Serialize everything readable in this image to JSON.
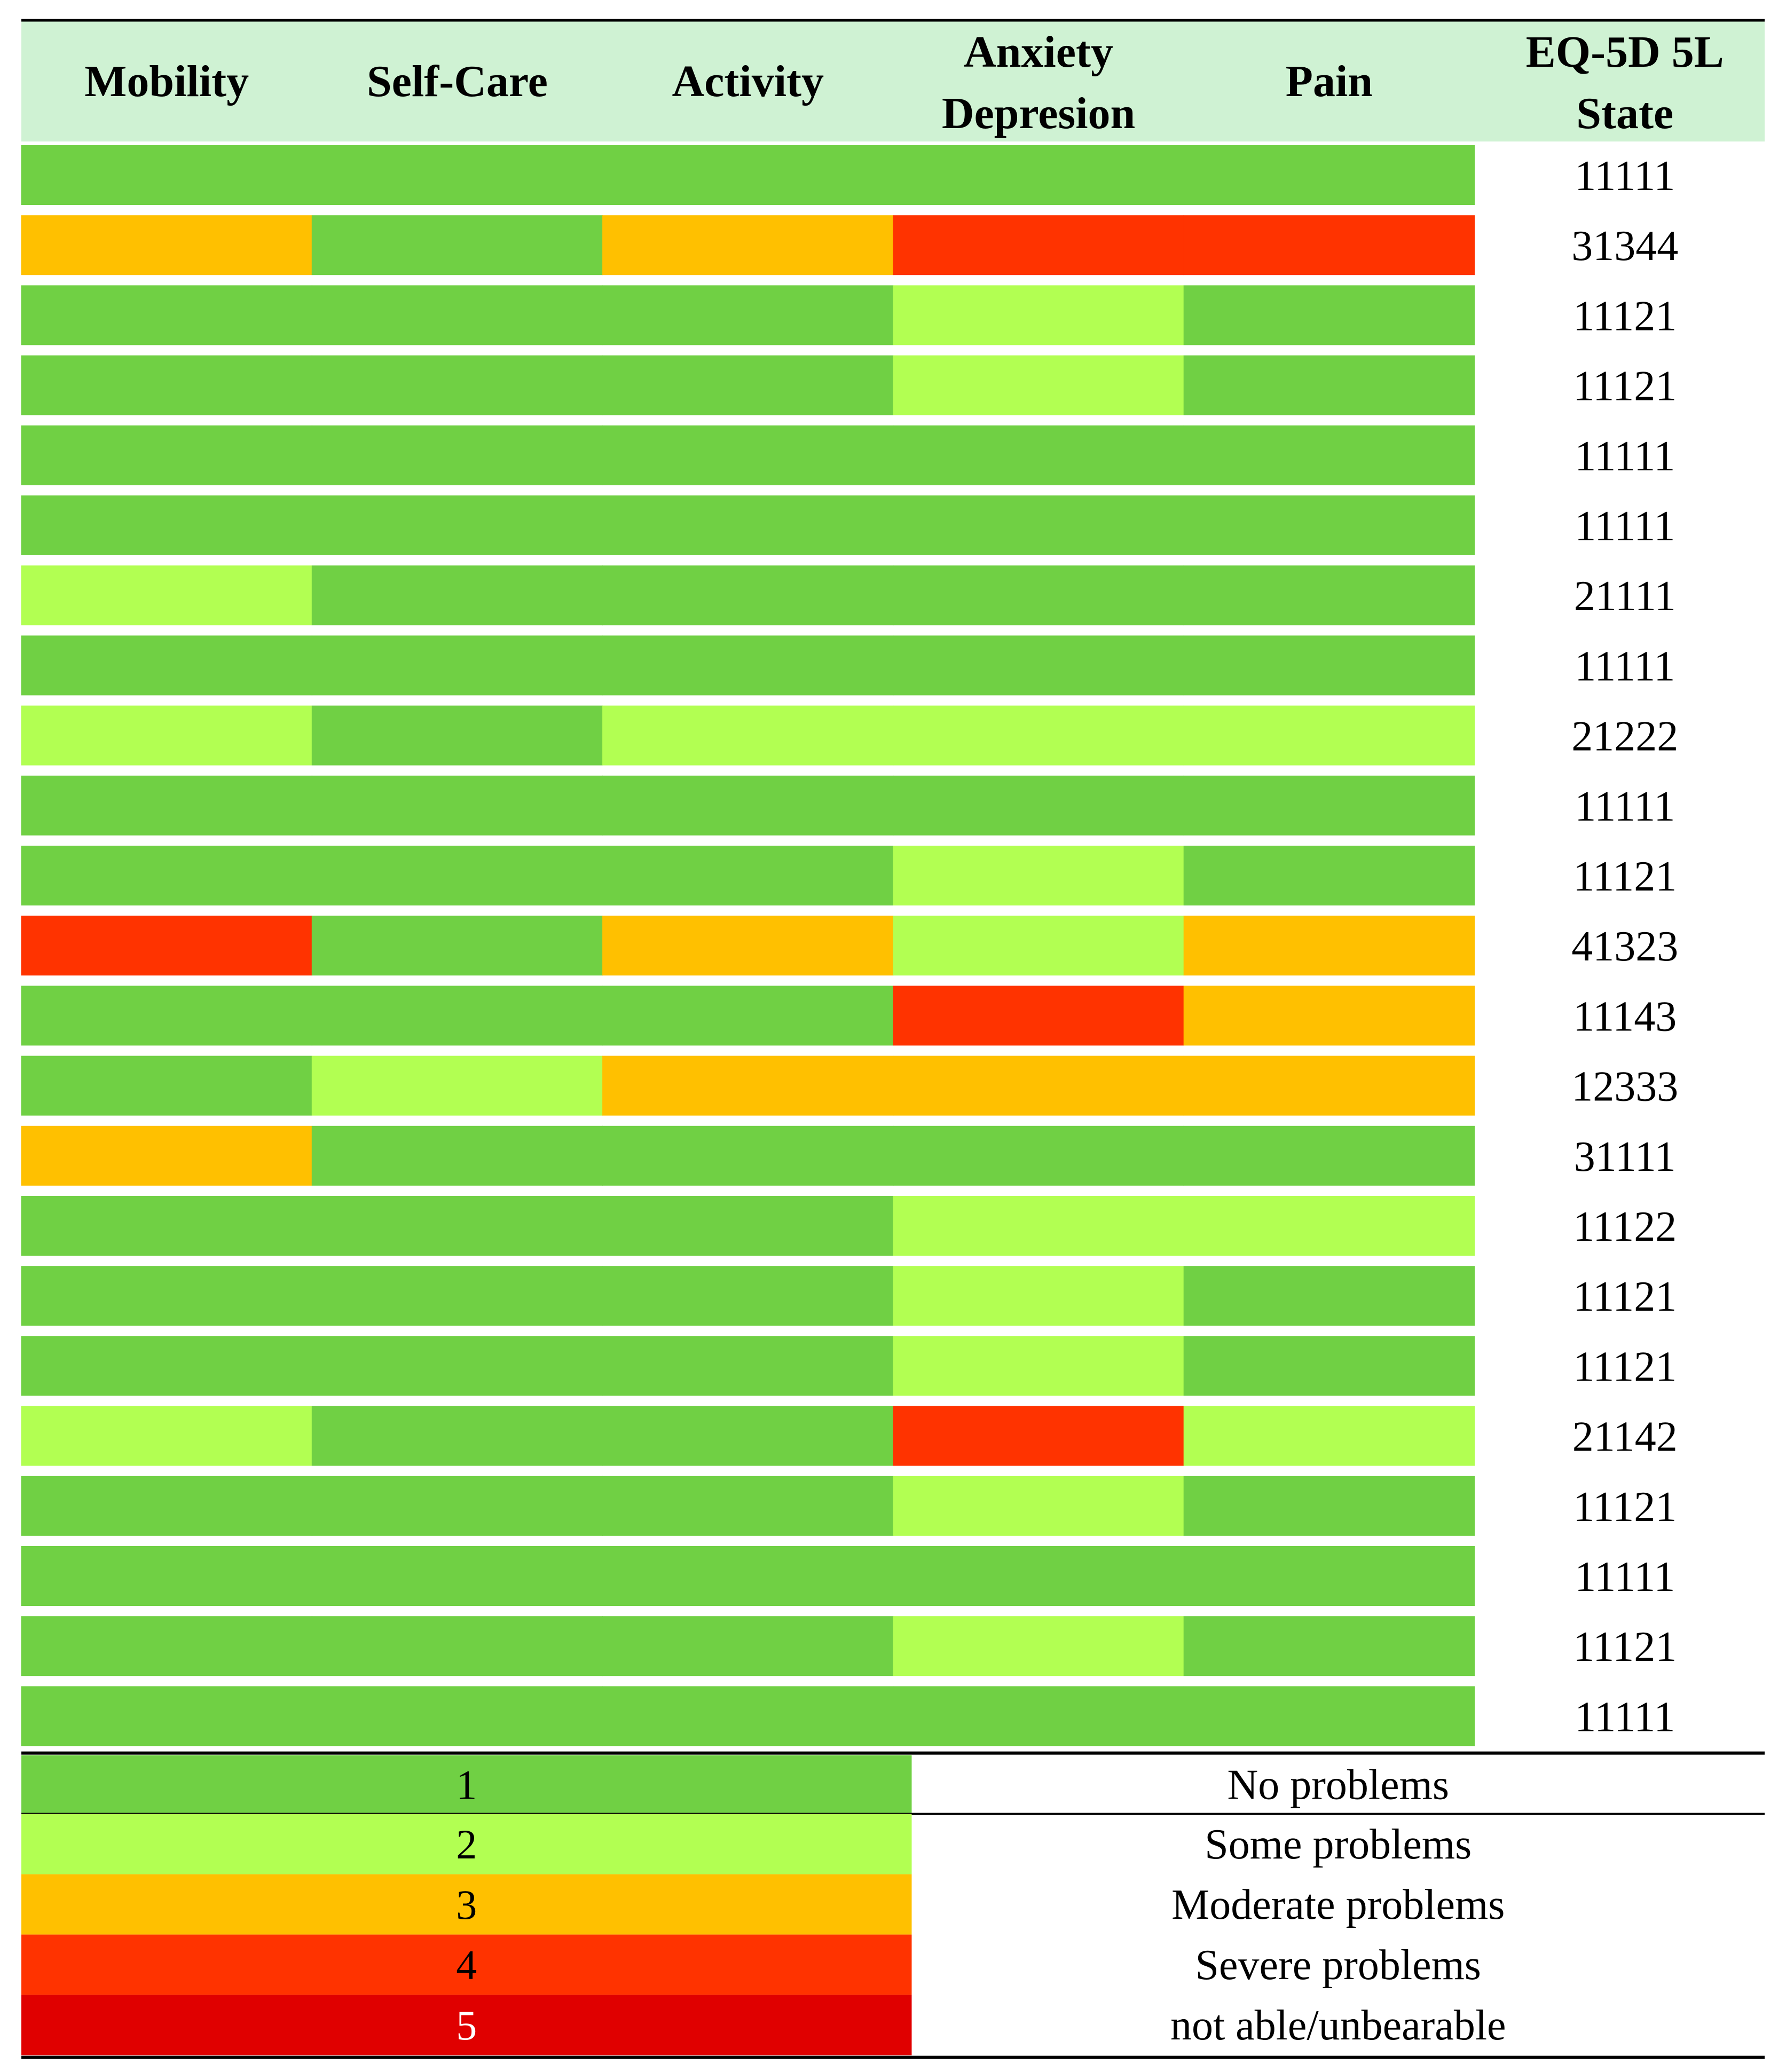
{
  "chart_data": {
    "type": "heatmap",
    "columns": [
      "Mobility",
      "Self-Care",
      "Activity",
      "Anxiety Depresion",
      "Pain"
    ],
    "state_column_header": "EQ-5D 5L State",
    "rows": [
      {
        "values": [
          1,
          1,
          1,
          1,
          1
        ],
        "state": "11111"
      },
      {
        "values": [
          3,
          1,
          3,
          4,
          4
        ],
        "state": "31344"
      },
      {
        "values": [
          1,
          1,
          1,
          2,
          1
        ],
        "state": "11121"
      },
      {
        "values": [
          1,
          1,
          1,
          2,
          1
        ],
        "state": "11121"
      },
      {
        "values": [
          1,
          1,
          1,
          1,
          1
        ],
        "state": "11111"
      },
      {
        "values": [
          1,
          1,
          1,
          1,
          1
        ],
        "state": "11111"
      },
      {
        "values": [
          2,
          1,
          1,
          1,
          1
        ],
        "state": "21111"
      },
      {
        "values": [
          1,
          1,
          1,
          1,
          1
        ],
        "state": "11111"
      },
      {
        "values": [
          2,
          1,
          2,
          2,
          2
        ],
        "state": "21222"
      },
      {
        "values": [
          1,
          1,
          1,
          1,
          1
        ],
        "state": "11111"
      },
      {
        "values": [
          1,
          1,
          1,
          2,
          1
        ],
        "state": "11121"
      },
      {
        "values": [
          4,
          1,
          3,
          2,
          3
        ],
        "state": "41323"
      },
      {
        "values": [
          1,
          1,
          1,
          4,
          3
        ],
        "state": "11143"
      },
      {
        "values": [
          1,
          2,
          3,
          3,
          3
        ],
        "state": "12333"
      },
      {
        "values": [
          3,
          1,
          1,
          1,
          1
        ],
        "state": "31111"
      },
      {
        "values": [
          1,
          1,
          1,
          2,
          2
        ],
        "state": "11122"
      },
      {
        "values": [
          1,
          1,
          1,
          2,
          1
        ],
        "state": "11121"
      },
      {
        "values": [
          1,
          1,
          1,
          2,
          1
        ],
        "state": "11121"
      },
      {
        "values": [
          2,
          1,
          1,
          4,
          2
        ],
        "state": "21142"
      },
      {
        "values": [
          1,
          1,
          1,
          2,
          1
        ],
        "state": "11121"
      },
      {
        "values": [
          1,
          1,
          1,
          1,
          1
        ],
        "state": "11111"
      },
      {
        "values": [
          1,
          1,
          1,
          2,
          1
        ],
        "state": "11121"
      },
      {
        "values": [
          1,
          1,
          1,
          1,
          1
        ],
        "state": "11111"
      }
    ],
    "legend": [
      {
        "level": "1",
        "label": "No problems",
        "color": "#70d044",
        "text_color": "#000000"
      },
      {
        "level": "2",
        "label": "Some problems",
        "color": "#b2ff52",
        "text_color": "#000000"
      },
      {
        "level": "3",
        "label": "Moderate problems",
        "color": "#ffc000",
        "text_color": "#000000"
      },
      {
        "level": "4",
        "label": "Severe problems",
        "color": "#ff3300",
        "text_color": "#000000"
      },
      {
        "level": "5",
        "label": "not able/unbearable",
        "color": "#e00000",
        "text_color": "#ffffff"
      }
    ],
    "header_color": "#cff2d3"
  }
}
